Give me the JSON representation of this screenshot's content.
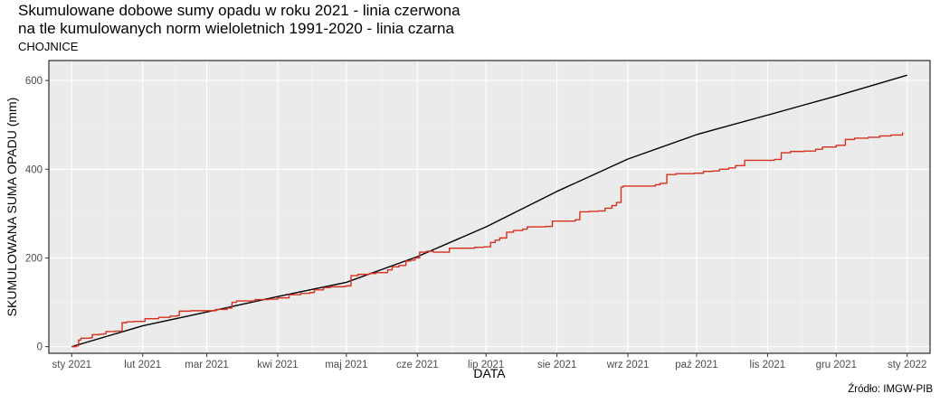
{
  "chart_data": {
    "type": "line",
    "title_lines": [
      "Skumulowane dobowe sumy opadu w roku 2021 - linia czerwona",
      "na tle kumulowanych norm wieloletnich 1991-2020 - linia czarna"
    ],
    "subtitle": "CHOJNICE",
    "xlabel": "DATA",
    "ylabel": "SKUMULOWANA SUMA OPADU (mm)",
    "source": "Źródło: IMGW-PIB",
    "x_ticks": [
      {
        "label": "sty 2021",
        "day": 0
      },
      {
        "label": "lut 2021",
        "day": 31
      },
      {
        "label": "mar 2021",
        "day": 59
      },
      {
        "label": "kwi 2021",
        "day": 90
      },
      {
        "label": "maj 2021",
        "day": 120
      },
      {
        "label": "cze 2021",
        "day": 151
      },
      {
        "label": "lip 2021",
        "day": 181
      },
      {
        "label": "sie 2021",
        "day": 212
      },
      {
        "label": "wrz 2021",
        "day": 243
      },
      {
        "label": "paź 2021",
        "day": 273
      },
      {
        "label": "lis 2021",
        "day": 304
      },
      {
        "label": "gru 2021",
        "day": 334
      },
      {
        "label": "sty 2022",
        "day": 365
      }
    ],
    "y_ticks": [
      0,
      200,
      400,
      600
    ],
    "xlim": [
      -10,
      375
    ],
    "ylim": [
      -15,
      645
    ],
    "grid": true,
    "series": [
      {
        "color": "#000000",
        "points": [
          [
            0,
            0
          ],
          [
            31,
            47
          ],
          [
            59,
            78
          ],
          [
            90,
            113
          ],
          [
            120,
            145
          ],
          [
            151,
            203
          ],
          [
            181,
            270
          ],
          [
            212,
            350
          ],
          [
            243,
            423
          ],
          [
            273,
            478
          ],
          [
            304,
            522
          ],
          [
            334,
            565
          ],
          [
            365,
            612
          ]
        ]
      },
      {
        "color": "#d7301f",
        "points": [
          [
            0,
            0
          ],
          [
            2,
            2
          ],
          [
            3,
            15
          ],
          [
            4,
            19
          ],
          [
            8,
            20
          ],
          [
            9,
            27
          ],
          [
            12,
            28
          ],
          [
            14,
            29
          ],
          [
            15,
            34
          ],
          [
            19,
            35
          ],
          [
            22,
            54
          ],
          [
            24,
            56
          ],
          [
            27,
            57
          ],
          [
            31,
            57
          ],
          [
            32,
            63
          ],
          [
            35,
            63
          ],
          [
            38,
            66
          ],
          [
            43,
            69
          ],
          [
            46,
            70
          ],
          [
            47,
            80
          ],
          [
            52,
            81
          ],
          [
            59,
            81
          ],
          [
            63,
            84
          ],
          [
            68,
            87
          ],
          [
            70,
            100
          ],
          [
            72,
            103
          ],
          [
            78,
            103
          ],
          [
            80,
            106
          ],
          [
            86,
            107
          ],
          [
            90,
            110
          ],
          [
            95,
            117
          ],
          [
            100,
            120
          ],
          [
            104,
            122
          ],
          [
            106,
            128
          ],
          [
            110,
            133
          ],
          [
            113,
            135
          ],
          [
            119,
            136
          ],
          [
            120,
            137
          ],
          [
            122,
            160
          ],
          [
            125,
            163
          ],
          [
            130,
            165
          ],
          [
            133,
            167
          ],
          [
            138,
            173
          ],
          [
            140,
            180
          ],
          [
            143,
            183
          ],
          [
            146,
            193
          ],
          [
            148,
            195
          ],
          [
            150,
            200
          ],
          [
            152,
            213
          ],
          [
            155,
            215
          ],
          [
            158,
            213
          ],
          [
            163,
            213
          ],
          [
            165,
            222
          ],
          [
            172,
            222
          ],
          [
            176,
            224
          ],
          [
            180,
            225
          ],
          [
            183,
            235
          ],
          [
            185,
            240
          ],
          [
            187,
            245
          ],
          [
            190,
            258
          ],
          [
            193,
            262
          ],
          [
            197,
            265
          ],
          [
            199,
            270
          ],
          [
            207,
            271
          ],
          [
            210,
            283
          ],
          [
            218,
            283
          ],
          [
            220,
            286
          ],
          [
            222,
            304
          ],
          [
            226,
            305
          ],
          [
            230,
            306
          ],
          [
            233,
            312
          ],
          [
            236,
            318
          ],
          [
            238,
            325
          ],
          [
            240,
            360
          ],
          [
            241,
            362
          ],
          [
            252,
            362
          ],
          [
            255,
            365
          ],
          [
            257,
            368
          ],
          [
            260,
            388
          ],
          [
            264,
            390
          ],
          [
            272,
            391
          ],
          [
            276,
            395
          ],
          [
            280,
            396
          ],
          [
            283,
            400
          ],
          [
            287,
            403
          ],
          [
            290,
            408
          ],
          [
            294,
            420
          ],
          [
            303,
            420
          ],
          [
            307,
            422
          ],
          [
            310,
            437
          ],
          [
            314,
            440
          ],
          [
            320,
            441
          ],
          [
            325,
            445
          ],
          [
            328,
            450
          ],
          [
            334,
            454
          ],
          [
            338,
            467
          ],
          [
            342,
            470
          ],
          [
            348,
            472
          ],
          [
            353,
            475
          ],
          [
            358,
            477
          ],
          [
            362,
            477
          ],
          [
            363,
            483
          ]
        ]
      }
    ]
  }
}
